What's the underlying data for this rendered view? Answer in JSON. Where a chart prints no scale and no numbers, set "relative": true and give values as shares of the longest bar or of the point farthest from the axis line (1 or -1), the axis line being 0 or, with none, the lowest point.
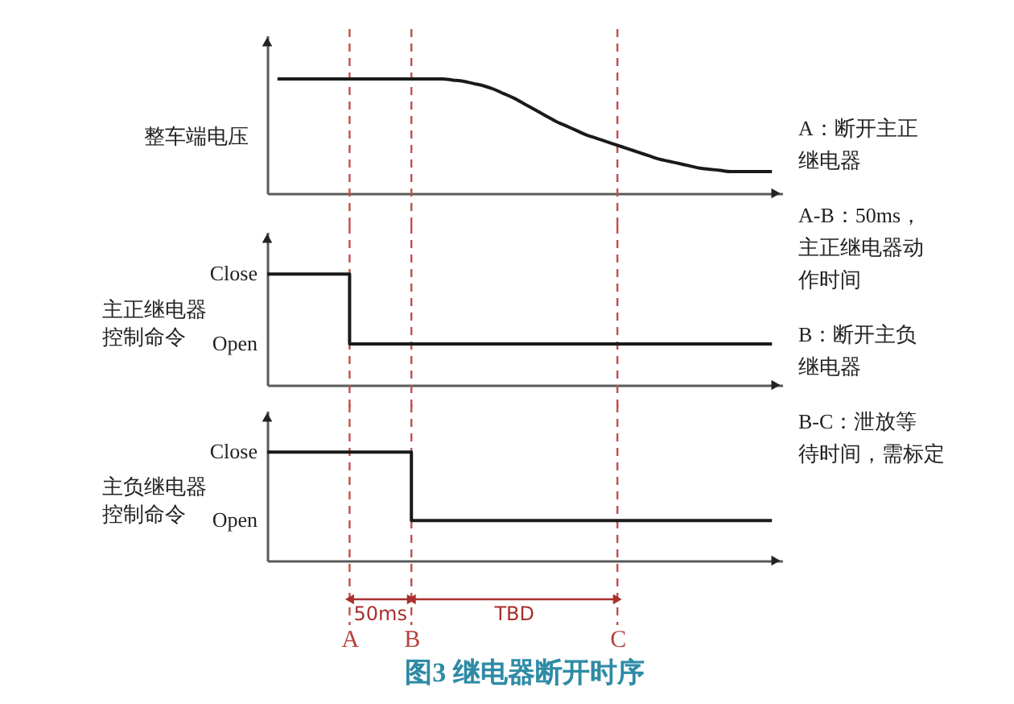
{
  "chart_data": [
    {
      "type": "line",
      "ylabel": "整车端电压",
      "relative": true,
      "color": "#1a1a1a",
      "tick_labels": false,
      "categories": [
        null,
        null,
        null,
        null,
        null,
        null,
        null,
        null,
        "A",
        null,
        null,
        null,
        null,
        null,
        "B",
        null,
        null,
        null,
        null,
        null,
        null,
        null,
        null,
        null,
        null,
        null,
        null,
        null,
        null,
        null,
        null,
        null,
        null,
        null,
        "C",
        null,
        null,
        null,
        null,
        null,
        null,
        null,
        null,
        null,
        null,
        null,
        null,
        null,
        null,
        null,
        null
      ],
      "values": [
        null,
        1,
        1,
        1,
        1,
        1,
        1,
        1,
        1,
        1,
        1,
        1,
        1,
        1,
        1,
        1,
        1,
        1,
        0.99,
        0.98,
        0.96,
        0.94,
        0.91,
        0.87,
        0.83,
        0.78,
        0.73,
        0.68,
        0.63,
        0.59,
        0.55,
        0.51,
        0.48,
        0.45,
        0.42,
        0.39,
        0.36,
        0.33,
        0.3,
        0.28,
        0.26,
        0.24,
        0.22,
        0.21,
        0.2,
        0.19,
        0.19,
        0.19,
        0.19,
        0.19,
        null
      ],
      "ref_lines": [
        {
          "axis": "x",
          "value": "A",
          "color": "#c0504d",
          "line_style": "dashed"
        },
        {
          "axis": "x",
          "value": "B",
          "color": "#c0504d",
          "line_style": "dashed"
        },
        {
          "axis": "x",
          "value": "C",
          "color": "#c0504d",
          "line_style": "dashed"
        }
      ]
    },
    {
      "type": "step",
      "ylabel": "主正继电器控制命令",
      "relative": true,
      "color": "#1a1a1a",
      "tick_labels": false,
      "categories": [
        null,
        null,
        null,
        null,
        null,
        null,
        null,
        null,
        "A",
        null,
        null,
        null,
        null,
        null,
        "B",
        null,
        null,
        null,
        null,
        null,
        null,
        null,
        null,
        null,
        null,
        null,
        null,
        null,
        null,
        null,
        null,
        null,
        null,
        null,
        "C",
        null,
        null,
        null,
        null,
        null,
        null,
        null,
        null,
        null,
        null,
        null,
        null,
        null,
        null,
        null,
        null
      ],
      "values": [
        1,
        1,
        1,
        1,
        1,
        1,
        1,
        1,
        0.37,
        0.37,
        0.37,
        0.37,
        0.37,
        0.37,
        0.37,
        0.37,
        0.37,
        0.37,
        0.37,
        0.37,
        0.37,
        0.37,
        0.37,
        0.37,
        0.37,
        0.37,
        0.37,
        0.37,
        0.37,
        0.37,
        0.37,
        0.37,
        0.37,
        0.37,
        0.37,
        0.37,
        0.37,
        0.37,
        0.37,
        0.37,
        0.37,
        0.37,
        0.37,
        0.37,
        0.37,
        0.37,
        0.37,
        0.37,
        0.37,
        0.37,
        null
      ],
      "annotations": [
        "Close",
        "Open"
      ],
      "ref_lines": [
        {
          "axis": "x",
          "value": "A",
          "color": "#c0504d",
          "line_style": "dashed"
        },
        {
          "axis": "x",
          "value": "B",
          "color": "#c0504d",
          "line_style": "dashed"
        },
        {
          "axis": "x",
          "value": "C",
          "color": "#c0504d",
          "line_style": "dashed"
        }
      ]
    },
    {
      "type": "step",
      "title": "图3 继电器断开时序",
      "ylabel": "主负继电器控制命令",
      "relative": true,
      "color": "#1a1a1a",
      "tick_labels": "x",
      "categories": [
        null,
        null,
        null,
        null,
        null,
        null,
        null,
        null,
        "A",
        null,
        null,
        null,
        null,
        null,
        "B",
        null,
        null,
        null,
        null,
        null,
        null,
        null,
        null,
        null,
        null,
        null,
        null,
        null,
        null,
        null,
        null,
        null,
        null,
        null,
        "C",
        null,
        null,
        null,
        null,
        null,
        null,
        null,
        null,
        null,
        null,
        null,
        null,
        null,
        null,
        null,
        null
      ],
      "values": [
        1,
        1,
        1,
        1,
        1,
        1,
        1,
        1,
        1,
        1,
        1,
        1,
        1,
        1,
        0.37,
        0.37,
        0.37,
        0.37,
        0.37,
        0.37,
        0.37,
        0.37,
        0.37,
        0.37,
        0.37,
        0.37,
        0.37,
        0.37,
        0.37,
        0.37,
        0.37,
        0.37,
        0.37,
        0.37,
        0.37,
        0.37,
        0.37,
        0.37,
        0.37,
        0.37,
        0.37,
        0.37,
        0.37,
        0.37,
        0.37,
        0.37,
        0.37,
        0.37,
        0.37,
        0.37,
        null
      ],
      "ref_lines": [
        {
          "axis": "x",
          "value": "A",
          "color": "#c0504d",
          "line_style": "dashed"
        },
        {
          "axis": "x",
          "value": "B",
          "color": "#c0504d",
          "line_style": "dashed"
        },
        {
          "axis": "x",
          "value": "C",
          "color": "#c0504d",
          "line_style": "dashed"
        }
      ],
      "annotations": [
        "Close",
        "Open",
        "50ms",
        "TBD"
      ]
    },
    {
      "type": "other",
      "annotations": [
        "A：断开主正继电器",
        "A-B：50ms，主正继电器动作时间",
        "B：断开主负继电器",
        "B-C：泄放等待时间，需标定"
      ]
    }
  ]
}
